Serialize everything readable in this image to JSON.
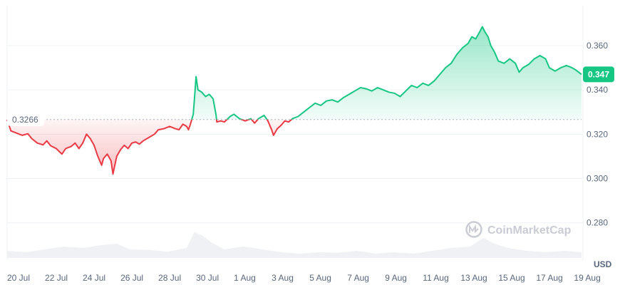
{
  "chart_data": {
    "type": "line",
    "currency_label": "USD",
    "watermark": "CoinMarketCap",
    "reference_value": 0.3266,
    "reference_label": "0.3266",
    "last_value": 0.347,
    "last_label": "0.347",
    "ylim": [
      0.268,
      0.378
    ],
    "y_ticks": [
      {
        "value": 0.28,
        "label": "0.280"
      },
      {
        "value": 0.3,
        "label": "0.300"
      },
      {
        "value": 0.32,
        "label": "0.320"
      },
      {
        "value": 0.34,
        "label": "0.340"
      },
      {
        "value": 0.36,
        "label": "0.360"
      }
    ],
    "x_ticks": [
      "20 Jul",
      "22 Jul",
      "24 Jul",
      "26 Jul",
      "28 Jul",
      "30 Jul",
      "1 Aug",
      "3 Aug",
      "5 Aug",
      "7 Aug",
      "9 Aug",
      "11 Aug",
      "13 Aug",
      "15 Aug",
      "17 Aug",
      "19 Aug"
    ],
    "x_range_days": [
      0,
      30.4
    ],
    "above_color": "#16c784",
    "below_color": "#ea3943",
    "series": [
      {
        "points": [
          [
            0.0,
            0.3266
          ],
          [
            0.2,
            0.3215
          ],
          [
            0.5,
            0.3205
          ],
          [
            0.8,
            0.3195
          ],
          [
            1.1,
            0.3202
          ],
          [
            1.3,
            0.318
          ],
          [
            1.6,
            0.316
          ],
          [
            1.9,
            0.3152
          ],
          [
            2.1,
            0.317
          ],
          [
            2.3,
            0.3148
          ],
          [
            2.6,
            0.3135
          ],
          [
            2.9,
            0.311
          ],
          [
            3.1,
            0.3135
          ],
          [
            3.4,
            0.3145
          ],
          [
            3.6,
            0.316
          ],
          [
            3.8,
            0.3135
          ],
          [
            4.0,
            0.316
          ],
          [
            4.2,
            0.32
          ],
          [
            4.4,
            0.318
          ],
          [
            4.6,
            0.315
          ],
          [
            4.8,
            0.31
          ],
          [
            5.0,
            0.306
          ],
          [
            5.1,
            0.309
          ],
          [
            5.3,
            0.311
          ],
          [
            5.5,
            0.308
          ],
          [
            5.6,
            0.302
          ],
          [
            5.8,
            0.31
          ],
          [
            6.0,
            0.313
          ],
          [
            6.2,
            0.315
          ],
          [
            6.4,
            0.3135
          ],
          [
            6.6,
            0.316
          ],
          [
            6.8,
            0.3165
          ],
          [
            7.0,
            0.3155
          ],
          [
            7.2,
            0.317
          ],
          [
            7.5,
            0.3185
          ],
          [
            7.8,
            0.32
          ],
          [
            8.0,
            0.322
          ],
          [
            8.3,
            0.3225
          ],
          [
            8.6,
            0.3235
          ],
          [
            8.9,
            0.3225
          ],
          [
            9.1,
            0.322
          ],
          [
            9.3,
            0.3245
          ],
          [
            9.5,
            0.3235
          ],
          [
            9.6,
            0.322
          ],
          [
            9.7,
            0.3245
          ],
          [
            9.85,
            0.329
          ],
          [
            9.95,
            0.34
          ],
          [
            10.0,
            0.346
          ],
          [
            10.1,
            0.34
          ],
          [
            10.3,
            0.339
          ],
          [
            10.5,
            0.337
          ],
          [
            10.7,
            0.338
          ],
          [
            10.9,
            0.336
          ],
          [
            11.05,
            0.329
          ],
          [
            11.1,
            0.3255
          ],
          [
            11.3,
            0.326
          ],
          [
            11.5,
            0.3255
          ],
          [
            11.8,
            0.328
          ],
          [
            12.0,
            0.329
          ],
          [
            12.3,
            0.327
          ],
          [
            12.6,
            0.326
          ],
          [
            12.9,
            0.327
          ],
          [
            13.1,
            0.325
          ],
          [
            13.3,
            0.327
          ],
          [
            13.6,
            0.3285
          ],
          [
            13.8,
            0.326
          ],
          [
            14.0,
            0.322
          ],
          [
            14.1,
            0.3195
          ],
          [
            14.3,
            0.3225
          ],
          [
            14.5,
            0.324
          ],
          [
            14.7,
            0.326
          ],
          [
            14.9,
            0.3255
          ],
          [
            15.1,
            0.327
          ],
          [
            15.4,
            0.328
          ],
          [
            15.7,
            0.33
          ],
          [
            16.0,
            0.332
          ],
          [
            16.3,
            0.334
          ],
          [
            16.6,
            0.333
          ],
          [
            16.9,
            0.335
          ],
          [
            17.2,
            0.3355
          ],
          [
            17.5,
            0.3345
          ],
          [
            17.8,
            0.3365
          ],
          [
            18.1,
            0.338
          ],
          [
            18.4,
            0.3395
          ],
          [
            18.7,
            0.341
          ],
          [
            19.0,
            0.3405
          ],
          [
            19.3,
            0.3395
          ],
          [
            19.6,
            0.341
          ],
          [
            19.9,
            0.34
          ],
          [
            20.2,
            0.339
          ],
          [
            20.5,
            0.3385
          ],
          [
            20.8,
            0.337
          ],
          [
            21.1,
            0.3395
          ],
          [
            21.4,
            0.342
          ],
          [
            21.7,
            0.341
          ],
          [
            22.0,
            0.343
          ],
          [
            22.3,
            0.342
          ],
          [
            22.6,
            0.344
          ],
          [
            22.9,
            0.347
          ],
          [
            23.2,
            0.35
          ],
          [
            23.5,
            0.352
          ],
          [
            23.8,
            0.356
          ],
          [
            24.1,
            0.359
          ],
          [
            24.4,
            0.361
          ],
          [
            24.6,
            0.364
          ],
          [
            24.8,
            0.363
          ],
          [
            25.0,
            0.366
          ],
          [
            25.15,
            0.3685
          ],
          [
            25.3,
            0.366
          ],
          [
            25.45,
            0.364
          ],
          [
            25.6,
            0.36
          ],
          [
            25.8,
            0.357
          ],
          [
            26.0,
            0.353
          ],
          [
            26.3,
            0.352
          ],
          [
            26.6,
            0.354
          ],
          [
            26.9,
            0.352
          ],
          [
            27.1,
            0.348
          ],
          [
            27.3,
            0.35
          ],
          [
            27.6,
            0.3515
          ],
          [
            27.9,
            0.354
          ],
          [
            28.2,
            0.3555
          ],
          [
            28.5,
            0.354
          ],
          [
            28.7,
            0.35
          ],
          [
            29.0,
            0.3485
          ],
          [
            29.3,
            0.35
          ],
          [
            29.6,
            0.351
          ],
          [
            29.9,
            0.35
          ],
          [
            30.1,
            0.349
          ],
          [
            30.4,
            0.347
          ]
        ]
      }
    ],
    "volume": {
      "points": [
        [
          0.0,
          0.25
        ],
        [
          1.0,
          0.2
        ],
        [
          2.0,
          0.3
        ],
        [
          3.0,
          0.4
        ],
        [
          4.0,
          0.35
        ],
        [
          5.0,
          0.45
        ],
        [
          5.8,
          0.5
        ],
        [
          6.5,
          0.3
        ],
        [
          7.5,
          0.28
        ],
        [
          8.5,
          0.22
        ],
        [
          9.5,
          0.35
        ],
        [
          9.9,
          0.9
        ],
        [
          10.3,
          0.8
        ],
        [
          10.8,
          0.55
        ],
        [
          11.5,
          0.3
        ],
        [
          12.5,
          0.4
        ],
        [
          13.5,
          0.3
        ],
        [
          14.5,
          0.2
        ],
        [
          15.5,
          0.15
        ],
        [
          16.5,
          0.2
        ],
        [
          17.5,
          0.18
        ],
        [
          18.5,
          0.25
        ],
        [
          19.5,
          0.15
        ],
        [
          20.5,
          0.2
        ],
        [
          21.5,
          0.15
        ],
        [
          22.5,
          0.25
        ],
        [
          23.5,
          0.35
        ],
        [
          24.5,
          0.4
        ],
        [
          25.2,
          0.7
        ],
        [
          25.8,
          0.5
        ],
        [
          26.5,
          0.35
        ],
        [
          27.5,
          0.25
        ],
        [
          28.5,
          0.2
        ],
        [
          29.5,
          0.25
        ],
        [
          30.4,
          0.2
        ]
      ]
    }
  }
}
